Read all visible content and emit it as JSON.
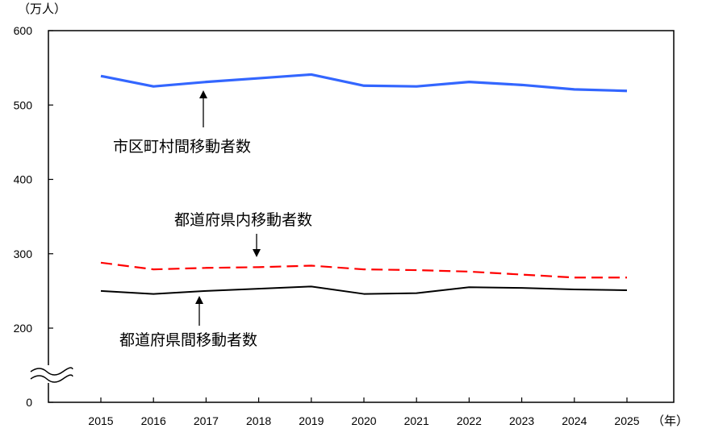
{
  "chart_data": {
    "type": "line",
    "y_unit": "（万人）",
    "x_unit": "（年）",
    "ylim": [
      0,
      600
    ],
    "y_axis_break": true,
    "y_ticks": [
      "0",
      "200",
      "300",
      "400",
      "500",
      "600"
    ],
    "categories": [
      "2015",
      "2016",
      "2017",
      "2018",
      "2019",
      "2020",
      "2021",
      "2022",
      "2023",
      "2024",
      "2025"
    ],
    "grid": false,
    "series": [
      {
        "name": "市区町村間移動者数",
        "color": "#3366ff",
        "style": "solid",
        "values": [
          539,
          525,
          531,
          536,
          541,
          526,
          525,
          531,
          527,
          521,
          519
        ]
      },
      {
        "name": "都道府県内移動者数",
        "color": "#ff0000",
        "style": "dashed",
        "values": [
          288,
          279,
          281,
          282,
          284,
          279,
          278,
          276,
          272,
          268,
          268
        ]
      },
      {
        "name": "都道府県間移動者数",
        "color": "#000000",
        "style": "solid",
        "values": [
          250,
          246,
          250,
          253,
          256,
          246,
          247,
          255,
          254,
          252,
          251
        ]
      }
    ]
  }
}
